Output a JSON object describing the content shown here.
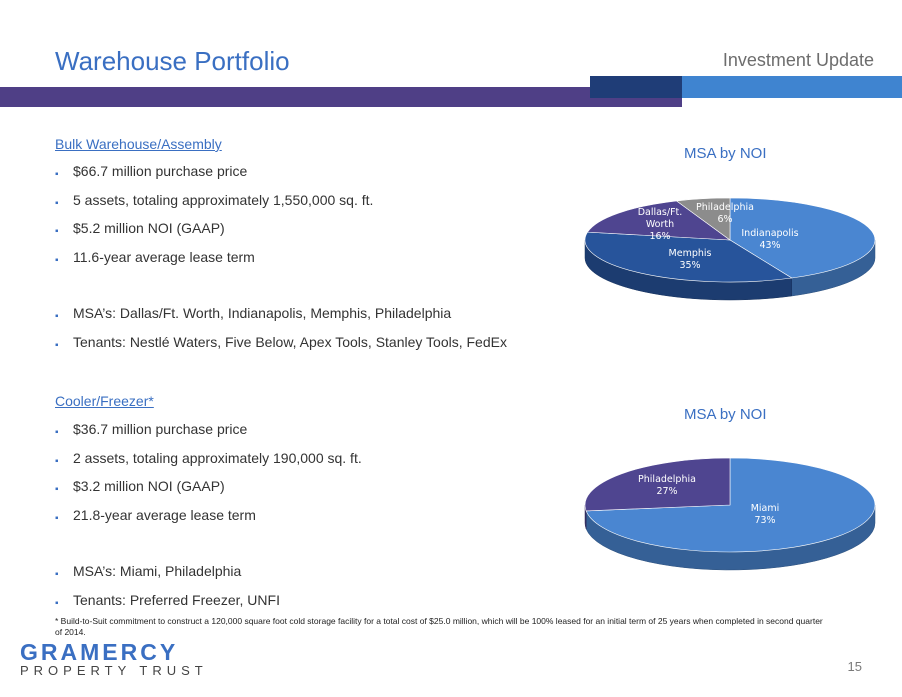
{
  "header": {
    "title": "Warehouse Portfolio",
    "subtitle": "Investment Update"
  },
  "sections": [
    {
      "heading": "Bulk Warehouse/Assembly",
      "bullets": [
        "$66.7 million purchase price",
        "5 assets, totaling approximately 1,550,000 sq. ft.",
        "$5.2 million NOI (GAAP)",
        "11.6-year average lease term",
        "MSA’s: Dallas/Ft. Worth, Indianapolis, Memphis, Philadelphia",
        "Tenants: Nestlé Waters, Five Below, Apex Tools, Stanley Tools, FedEx"
      ]
    },
    {
      "heading": "Cooler/Freezer*",
      "bullets": [
        "$36.7 million purchase price",
        "2 assets, totaling approximately 190,000 sq. ft.",
        "$3.2 million NOI (GAAP)",
        "21.8-year average lease term",
        "MSA’s: Miami, Philadelphia",
        "Tenants: Preferred Freezer, UNFI"
      ]
    }
  ],
  "footnote": "* Build-to-Suit commitment to construct a 120,000 square foot cold storage facility for a total cost of $25.0 million, which will be 100% leased for an initial term of 25 years when completed in second quarter of 2014.",
  "logo": {
    "line1": "GRAMERCY",
    "line2": "PROPERTY TRUST"
  },
  "page_number": "15",
  "chart_data": [
    {
      "type": "pie",
      "title": "MSA by NOI",
      "slices": [
        {
          "label": "Indianapolis",
          "value": 43,
          "value_text": "43%",
          "color": "#4a86d1"
        },
        {
          "label": "Memphis",
          "value": 35,
          "value_text": "35%",
          "color": "#27549b"
        },
        {
          "label_lines": [
            "Dallas/Ft.",
            "Worth"
          ],
          "value": 16,
          "value_text": "16%",
          "color": "#4f4590"
        },
        {
          "label": "Philadelphia",
          "value": 6,
          "value_text": "6%",
          "color": "#8c8c8c"
        }
      ]
    },
    {
      "type": "pie",
      "title": "MSA by NOI",
      "slices": [
        {
          "label": "Miami",
          "value": 73,
          "value_text": "73%",
          "color": "#4a86d1"
        },
        {
          "label": "Philadelphia",
          "value": 27,
          "value_text": "27%",
          "color": "#4f4590"
        }
      ]
    }
  ]
}
